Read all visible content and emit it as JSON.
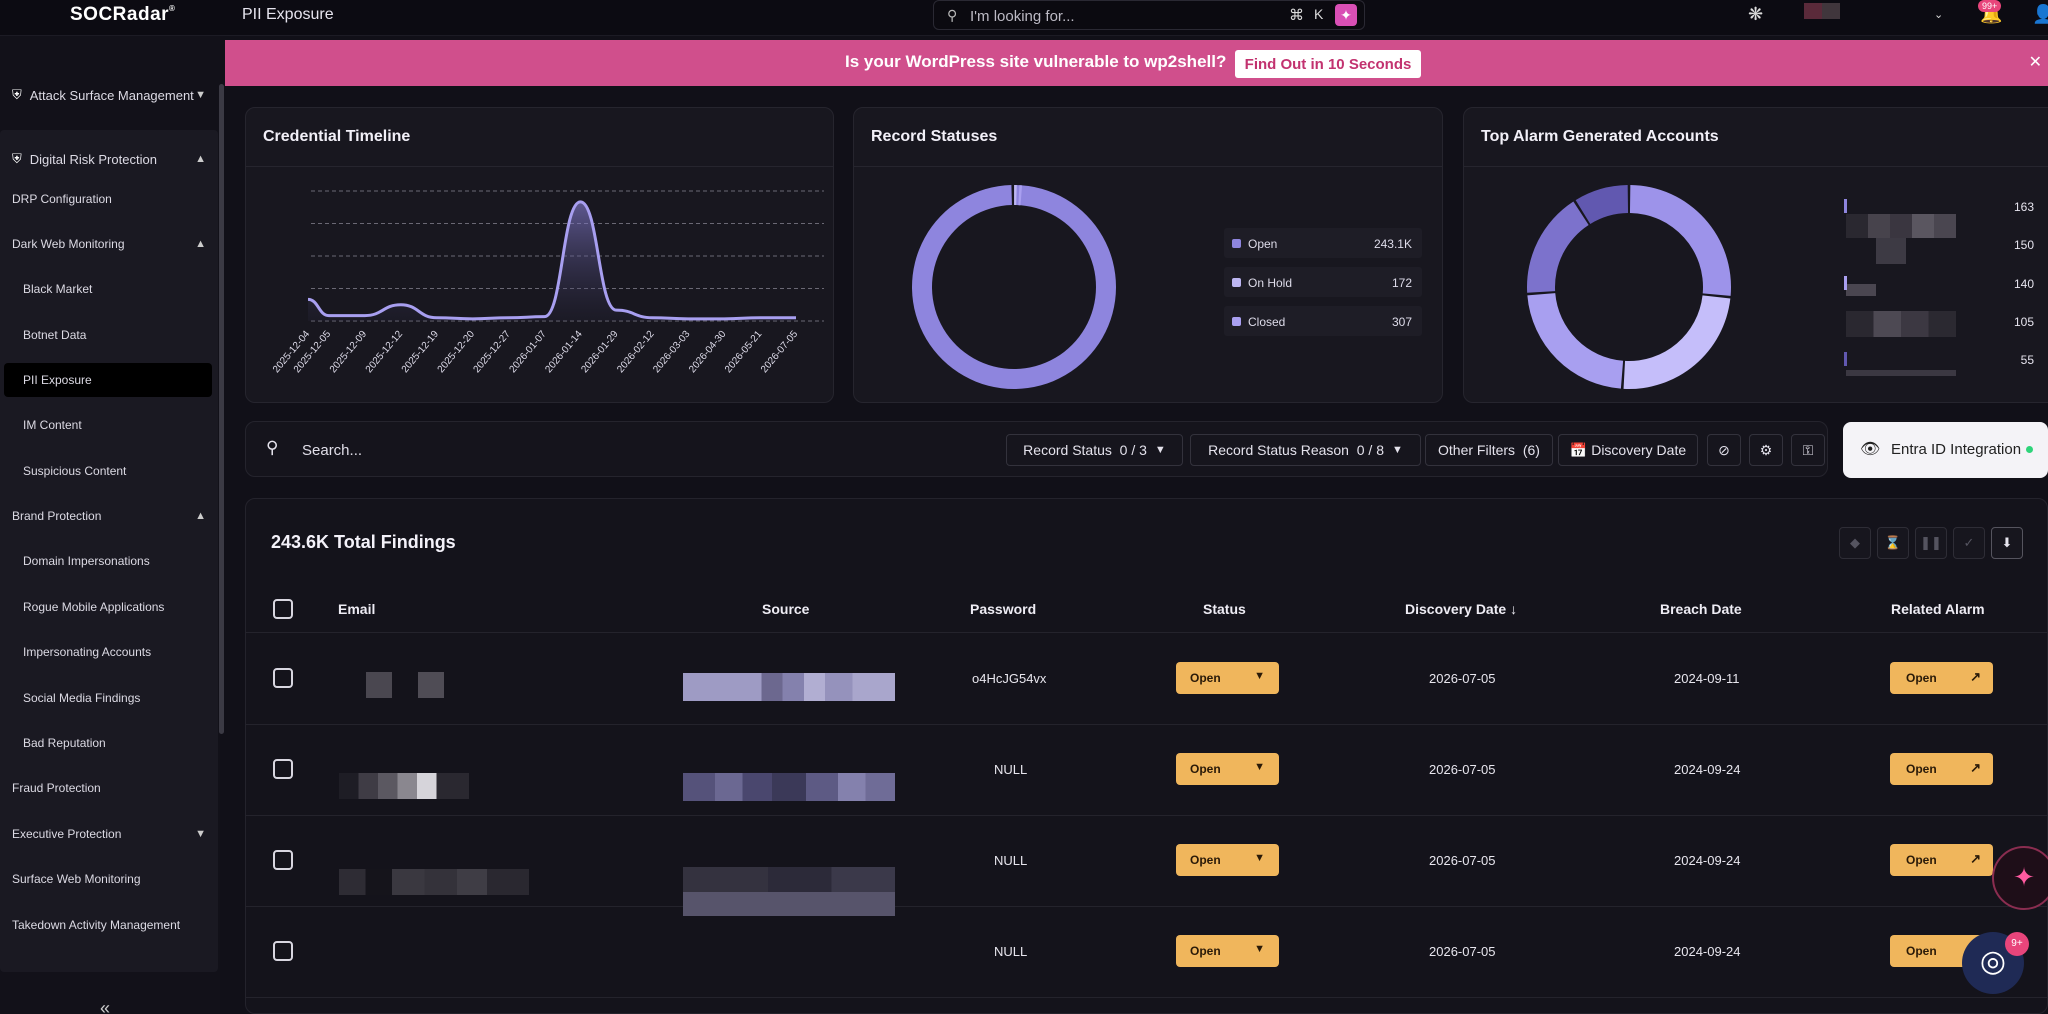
{
  "topbar": {
    "logo": "SOCRadar",
    "logo_mark": "®",
    "page_title": "PII Exposure",
    "search_placeholder": "I'm looking for...",
    "shortcut_cmd": "⌘",
    "shortcut_key": "K",
    "notif_badge": "99+"
  },
  "banner": {
    "text": "Is your WordPress site vulnerable to wp2shell?",
    "cta": "Find Out in 10 Seconds"
  },
  "sidebar": {
    "items": [
      {
        "label": "Attack Surface Management"
      },
      {
        "label": "Digital Risk Protection"
      },
      {
        "label": "DRP Configuration"
      },
      {
        "label": "Dark Web Monitoring"
      },
      {
        "label": "Black Market"
      },
      {
        "label": "Botnet Data"
      },
      {
        "label": "PII Exposure"
      },
      {
        "label": "IM Content"
      },
      {
        "label": "Suspicious Content"
      },
      {
        "label": "Brand Protection"
      },
      {
        "label": "Domain Impersonations"
      },
      {
        "label": "Rogue Mobile Applications"
      },
      {
        "label": "Impersonating Accounts"
      },
      {
        "label": "Social Media Findings"
      },
      {
        "label": "Bad Reputation"
      },
      {
        "label": "Fraud Protection"
      },
      {
        "label": "Executive Protection"
      },
      {
        "label": "Surface Web Monitoring"
      },
      {
        "label": "Takedown Activity Management"
      }
    ]
  },
  "cards": {
    "timeline_title": "Credential Timeline",
    "statuses_title": "Record Statuses",
    "top_accounts_title": "Top Alarm Generated Accounts"
  },
  "chart_data": [
    {
      "type": "area",
      "title": "Credential Timeline",
      "x": [
        "2025-12-04",
        "2025-12-05",
        "2025-12-09",
        "2025-12-12",
        "2025-12-19",
        "2025-12-20",
        "2025-12-27",
        "2026-01-07",
        "2026-01-14",
        "2026-01-29",
        "2026-02-12",
        "2026-03-03",
        "2026-04-30",
        "2026-05-21",
        "2026-07-05"
      ],
      "values": [
        20,
        5,
        5,
        15,
        3,
        2,
        3,
        4,
        110,
        10,
        3,
        2,
        2,
        3,
        3
      ],
      "ylim": [
        0,
        120
      ],
      "grid": true
    },
    {
      "type": "pie",
      "title": "Record Statuses",
      "categories": [
        "Open",
        "On Hold",
        "Closed"
      ],
      "labels": [
        "243.1K",
        "172",
        "307"
      ],
      "values": [
        243100,
        172,
        307
      ],
      "colors": [
        "#8e85de",
        "#bdb6f2",
        "#a99ff0"
      ]
    },
    {
      "type": "pie",
      "title": "Top Alarm Generated Accounts",
      "values": [
        163,
        150,
        140,
        105,
        55
      ],
      "colors": [
        "#9d93ea",
        "#c5befa",
        "#a89ff0",
        "#7c72cc",
        "#6158b0"
      ]
    }
  ],
  "filters": {
    "search_placeholder": "Search...",
    "record_status": "Record Status",
    "record_status_count": "0 / 3",
    "record_status_reason": "Record Status Reason",
    "record_status_reason_count": "0 / 8",
    "other_filters": "Other Filters",
    "other_filters_count": "(6)",
    "discovery_date": "Discovery Date",
    "entra": "Entra ID Integration"
  },
  "table": {
    "title": "243.6K Total Findings",
    "headers": {
      "email": "Email",
      "source": "Source",
      "password": "Password",
      "status": "Status",
      "discovery": "Discovery Date",
      "breach": "Breach Date",
      "alarm": "Related Alarm"
    },
    "rows": [
      {
        "password": "o4HcJG54vx",
        "status": "Open",
        "discovery": "2026-07-05",
        "breach": "2024-09-11",
        "alarm": "Open"
      },
      {
        "password": "NULL",
        "status": "Open",
        "discovery": "2026-07-05",
        "breach": "2024-09-24",
        "alarm": "Open"
      },
      {
        "password": "NULL",
        "status": "Open",
        "discovery": "2026-07-05",
        "breach": "2024-09-24",
        "alarm": "Open"
      },
      {
        "password": "NULL",
        "status": "Open",
        "discovery": "2026-07-05",
        "breach": "2024-09-24",
        "alarm": "Open"
      }
    ]
  },
  "floating": {
    "chat_badge": "9+"
  },
  "colors": {
    "accent": "#8e85de",
    "banner": "#d04f8c",
    "status_pill": "#f0b65c"
  }
}
